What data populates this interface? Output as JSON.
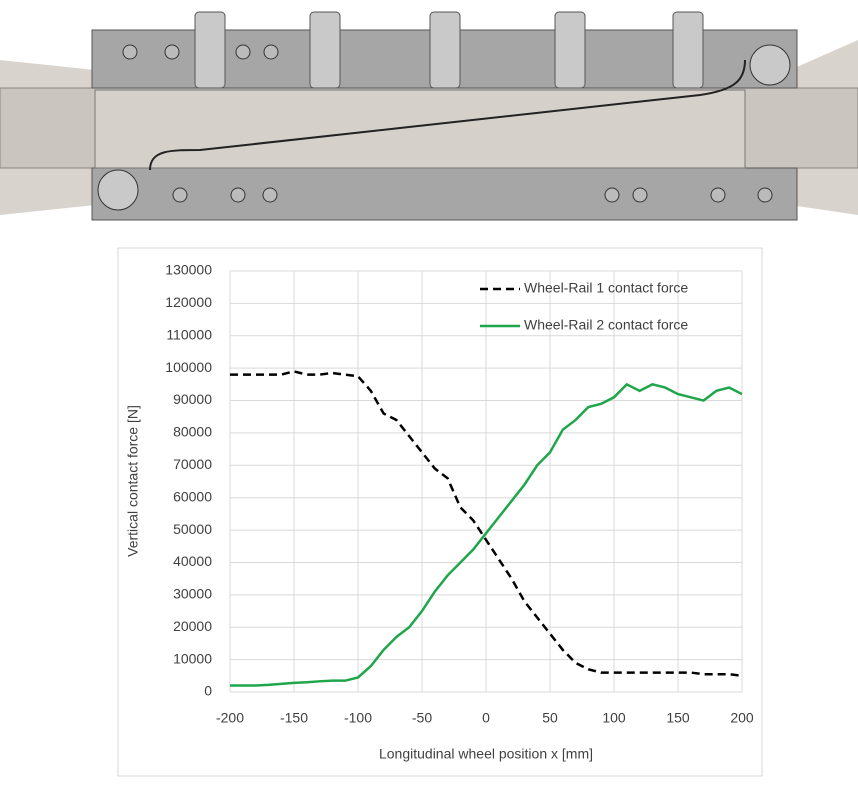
{
  "chart_data": {
    "type": "line",
    "x_label": "Longitudinal wheel position x [mm]",
    "y_label": "Vertical contact force [N]",
    "x": [
      -200,
      -190,
      -180,
      -170,
      -160,
      -150,
      -140,
      -130,
      -120,
      -110,
      -100,
      -90,
      -80,
      -70,
      -60,
      -50,
      -40,
      -30,
      -20,
      -10,
      0,
      10,
      20,
      30,
      40,
      50,
      60,
      70,
      80,
      90,
      100,
      110,
      120,
      130,
      140,
      150,
      160,
      170,
      180,
      190,
      200
    ],
    "series": [
      {
        "name": "Wheel-Rail 1 contact force",
        "color": "#000000",
        "dashed": true,
        "values": [
          98000,
          98000,
          98000,
          98000,
          98000,
          99000,
          98000,
          98000,
          98500,
          98000,
          97500,
          93000,
          86000,
          84000,
          79000,
          74000,
          69000,
          66000,
          57000,
          53000,
          47000,
          41000,
          35000,
          28000,
          23000,
          18000,
          13000,
          9000,
          7000,
          6000,
          6000,
          6000,
          6000,
          6000,
          6000,
          6000,
          6000,
          5500,
          5500,
          5500,
          5000
        ]
      },
      {
        "name": "Wheel-Rail 2 contact force",
        "color": "#1fa64a",
        "dashed": false,
        "values": [
          2000,
          2000,
          2000,
          2200,
          2500,
          2800,
          3000,
          3300,
          3500,
          3500,
          4500,
          8000,
          13000,
          17000,
          20000,
          25000,
          31000,
          36000,
          40000,
          44000,
          49000,
          54000,
          59000,
          64000,
          70000,
          74000,
          81000,
          84000,
          88000,
          89000,
          91000,
          95000,
          93000,
          95000,
          94000,
          92000,
          91000,
          90000,
          93000,
          94000,
          92000
        ]
      }
    ],
    "xlim": [
      -200,
      200
    ],
    "xticks": [
      -200,
      -150,
      -100,
      -50,
      0,
      50,
      100,
      150,
      200
    ],
    "ylim": [
      0,
      130000
    ],
    "yticks": [
      0,
      10000,
      20000,
      30000,
      40000,
      50000,
      60000,
      70000,
      80000,
      90000,
      100000,
      110000,
      120000,
      130000
    ],
    "grid": true,
    "legend": "upper right"
  }
}
